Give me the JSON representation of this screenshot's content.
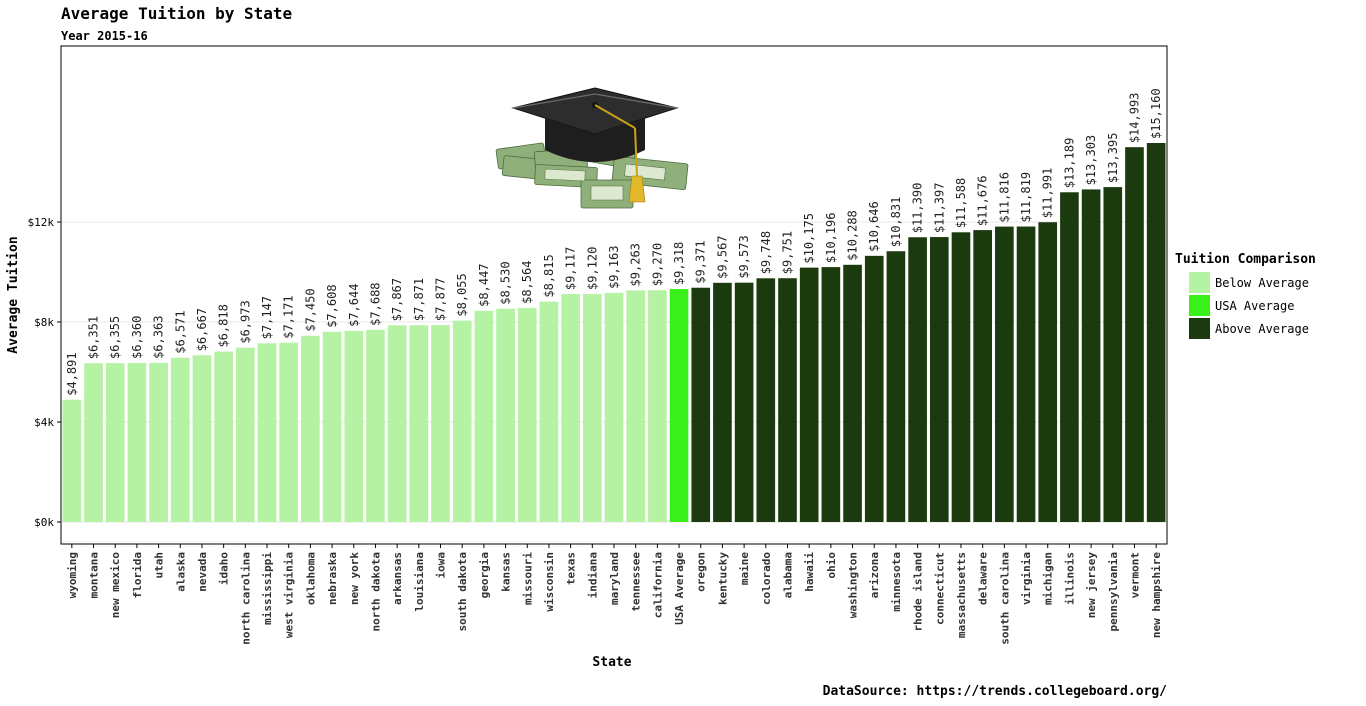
{
  "chart_data": {
    "type": "bar",
    "title": "Average Tuition by State",
    "subtitle": "Year 2015-16",
    "xlabel": "State",
    "ylabel": "Average Tuition",
    "ylim": [
      0,
      15160
    ],
    "yticks": [
      0,
      4000,
      8000,
      12000
    ],
    "ytick_labels": [
      "$0k",
      "$4k",
      "$8k",
      "$12k"
    ],
    "grid": true,
    "legend": {
      "title": "Tuition Comparison",
      "position": "right",
      "entries": [
        {
          "name": "Below Average",
          "color": "#b6f2a4"
        },
        {
          "name": "USA Average",
          "color": "#3af01a"
        },
        {
          "name": "Above Average",
          "color": "#1b3a0d"
        }
      ]
    },
    "categories": [
      "wyoming",
      "montana",
      "new mexico",
      "florida",
      "utah",
      "alaska",
      "nevada",
      "idaho",
      "north carolina",
      "mississippi",
      "west virginia",
      "oklahoma",
      "nebraska",
      "new york",
      "north dakota",
      "arkansas",
      "louisiana",
      "iowa",
      "south dakota",
      "georgia",
      "kansas",
      "missouri",
      "wisconsin",
      "texas",
      "indiana",
      "maryland",
      "tennessee",
      "california",
      "USA Average",
      "oregon",
      "kentucky",
      "maine",
      "colorado",
      "alabama",
      "hawaii",
      "ohio",
      "washington",
      "arizona",
      "minnesota",
      "rhode island",
      "connecticut",
      "massachusetts",
      "delaware",
      "south carolina",
      "virginia",
      "michigan",
      "illinois",
      "new jersey",
      "pennsylvania",
      "vermont",
      "new hampshire"
    ],
    "values": [
      4891,
      6351,
      6355,
      6360,
      6363,
      6571,
      6667,
      6818,
      6973,
      7147,
      7171,
      7450,
      7608,
      7644,
      7688,
      7867,
      7871,
      7877,
      8055,
      8447,
      8530,
      8564,
      8815,
      9117,
      9120,
      9163,
      9263,
      9270,
      9318,
      9371,
      9567,
      9573,
      9748,
      9751,
      10175,
      10196,
      10288,
      10646,
      10831,
      11390,
      11397,
      11588,
      11676,
      11816,
      11819,
      11991,
      13189,
      13303,
      13395,
      14993,
      15160
    ],
    "data_labels": [
      "$4,891",
      "$6,351",
      "$6,355",
      "$6,360",
      "$6,363",
      "$6,571",
      "$6,667",
      "$6,818",
      "$6,973",
      "$7,147",
      "$7,171",
      "$7,450",
      "$7,608",
      "$7,644",
      "$7,688",
      "$7,867",
      "$7,871",
      "$7,877",
      "$8,055",
      "$8,447",
      "$8,530",
      "$8,564",
      "$8,815",
      "$9,117",
      "$9,120",
      "$9,163",
      "$9,263",
      "$9,270",
      "$9,318",
      "$9,371",
      "$9,567",
      "$9,573",
      "$9,748",
      "$9,751",
      "$10,175",
      "$10,196",
      "$10,288",
      "$10,646",
      "$10,831",
      "$11,390",
      "$11,397",
      "$11,588",
      "$11,676",
      "$11,816",
      "$11,819",
      "$11,991",
      "$13,189",
      "$13,303",
      "$13,395",
      "$14,993",
      "$15,160"
    ],
    "groups": [
      "Below Average",
      "Below Average",
      "Below Average",
      "Below Average",
      "Below Average",
      "Below Average",
      "Below Average",
      "Below Average",
      "Below Average",
      "Below Average",
      "Below Average",
      "Below Average",
      "Below Average",
      "Below Average",
      "Below Average",
      "Below Average",
      "Below Average",
      "Below Average",
      "Below Average",
      "Below Average",
      "Below Average",
      "Below Average",
      "Below Average",
      "Below Average",
      "Below Average",
      "Below Average",
      "Below Average",
      "Below Average",
      "USA Average",
      "Above Average",
      "Above Average",
      "Above Average",
      "Above Average",
      "Above Average",
      "Above Average",
      "Above Average",
      "Above Average",
      "Above Average",
      "Above Average",
      "Above Average",
      "Above Average",
      "Above Average",
      "Above Average",
      "Above Average",
      "Above Average",
      "Above Average",
      "Above Average",
      "Above Average",
      "Above Average",
      "Above Average",
      "Above Average"
    ]
  },
  "image": {
    "icon": "graduation-cap-and-money-icon"
  },
  "source": "DataSource: https://trends.collegeboard.org/"
}
